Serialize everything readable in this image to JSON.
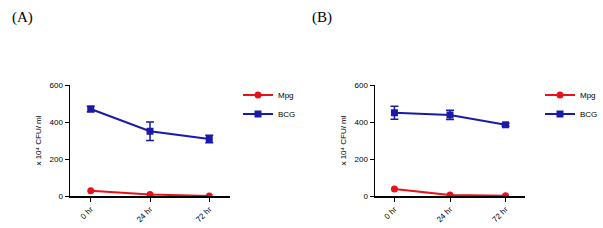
{
  "chart_data": [
    {
      "type": "line",
      "title": "(A)",
      "y_label": "x 10⁴ CFU/ ml",
      "categories": [
        "0 hr",
        "24 hr",
        "72 hr"
      ],
      "ylim": [
        0,
        600
      ],
      "yticks": [
        0,
        200,
        400,
        600
      ],
      "grid": false,
      "legend": "upper right",
      "series": [
        {
          "name": "Mpg",
          "color": "#e8121c",
          "marker": "circle",
          "values": [
            28,
            8,
            0
          ]
        },
        {
          "name": "BCG",
          "color": "#1a1aa8",
          "marker": "square",
          "values": [
            470,
            350,
            308
          ],
          "error": [
            15,
            50,
            20
          ]
        }
      ]
    },
    {
      "type": "line",
      "title": "(B)",
      "y_label": "x 10⁴ CFU/ ml",
      "categories": [
        "0 hr",
        "24 hr",
        "72 hr"
      ],
      "ylim": [
        0,
        600
      ],
      "yticks": [
        0,
        200,
        400,
        600
      ],
      "grid": false,
      "legend": "upper right",
      "series": [
        {
          "name": "Mpg",
          "color": "#e8121c",
          "marker": "circle",
          "values": [
            38,
            5,
            2
          ]
        },
        {
          "name": "BCG",
          "color": "#1a1aa8",
          "marker": "square",
          "values": [
            450,
            438,
            385
          ],
          "error": [
            35,
            25,
            8
          ]
        }
      ]
    }
  ]
}
